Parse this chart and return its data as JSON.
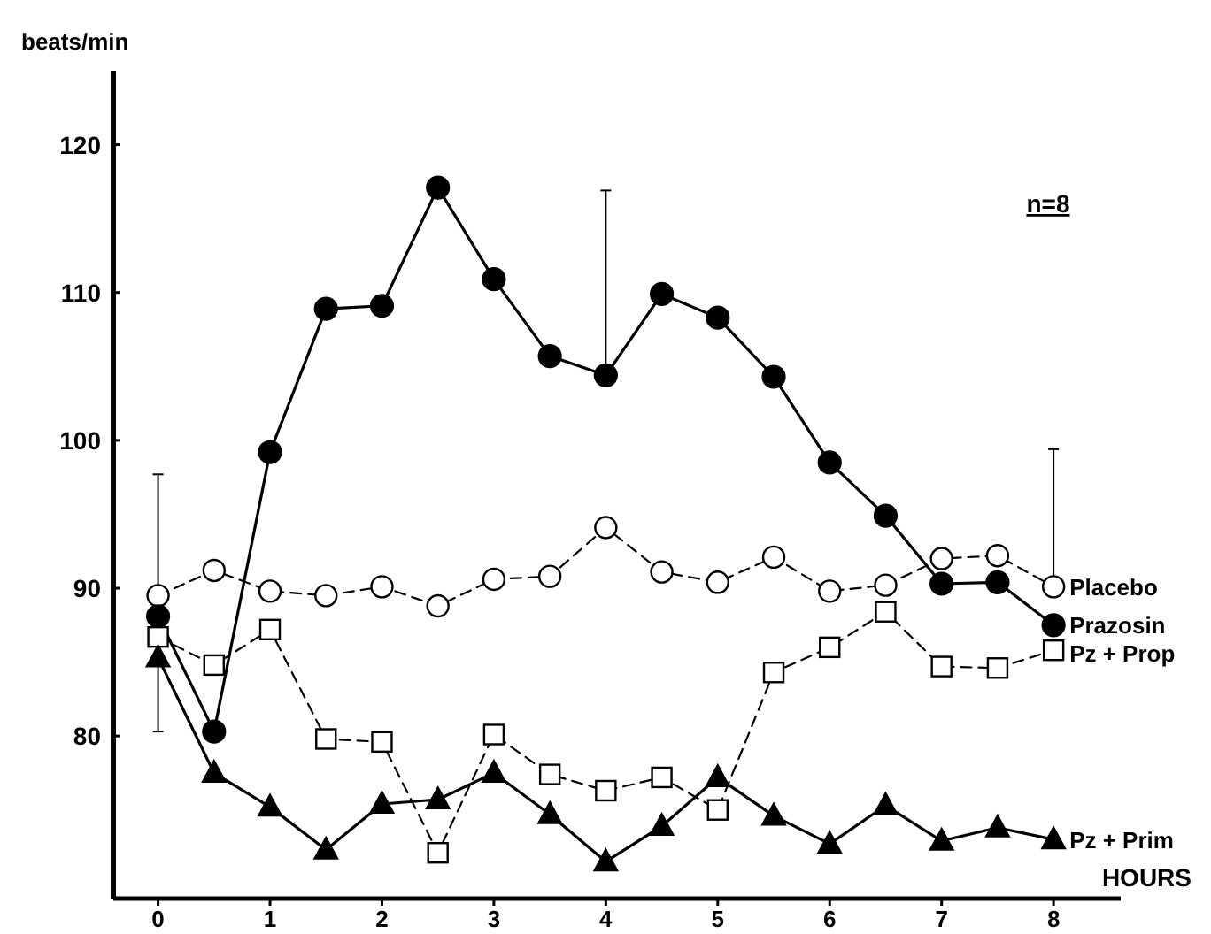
{
  "chart_data": {
    "type": "line",
    "xlabel": "HOURS",
    "ylabel": "beats/min",
    "annotations": [
      "n=8"
    ],
    "x": [
      0,
      0.5,
      1,
      1.5,
      2,
      2.5,
      3,
      3.5,
      4,
      4.5,
      5,
      5.5,
      6,
      6.5,
      7,
      7.5,
      8
    ],
    "xlim": [
      -0.4,
      8.6
    ],
    "xticks": [
      0,
      1,
      2,
      3,
      4,
      5,
      6,
      7,
      8
    ],
    "ylim": [
      69,
      125
    ],
    "yticks": [
      80,
      90,
      100,
      110,
      120
    ],
    "series": [
      {
        "name": "Placebo",
        "color": "#000000",
        "marker": "circle",
        "line_style": "dashed",
        "values": [
          89.5,
          91.2,
          89.8,
          89.5,
          90.1,
          88.8,
          90.6,
          90.8,
          94.1,
          91.1,
          90.4,
          92.1,
          89.8,
          90.2,
          92.0,
          92.2,
          90.1
        ],
        "errors": [
          [
            80.3,
            97.7
          ],
          null,
          null,
          null,
          null,
          null,
          null,
          null,
          null,
          null,
          null,
          null,
          null,
          null,
          null,
          null,
          [
            90.1,
            99.4
          ]
        ]
      },
      {
        "name": "Prazosin",
        "color": "#000000",
        "marker": "circle",
        "line_style": "solid",
        "values": [
          88.1,
          80.3,
          99.2,
          108.9,
          109.1,
          117.1,
          110.9,
          105.7,
          104.4,
          109.9,
          108.3,
          104.3,
          98.5,
          94.9,
          90.3,
          90.4,
          87.5
        ],
        "errors": [
          null,
          null,
          null,
          null,
          null,
          null,
          null,
          null,
          [
            104.4,
            116.9
          ],
          null,
          null,
          null,
          null,
          null,
          null,
          null,
          null
        ]
      },
      {
        "name": "Pz + Prop",
        "color": "#000000",
        "marker": "square",
        "line_style": "dashed",
        "values": [
          86.7,
          84.8,
          87.2,
          79.8,
          79.6,
          72.1,
          80.1,
          77.4,
          76.3,
          77.2,
          75.0,
          84.3,
          86.0,
          88.4,
          84.7,
          84.6,
          85.8
        ]
      },
      {
        "name": "Pz + Prim",
        "color": "#000000",
        "marker": "triangle",
        "line_style": "solid",
        "values": [
          85.3,
          77.5,
          75.2,
          72.3,
          75.4,
          75.7,
          77.5,
          74.7,
          71.5,
          73.9,
          77.2,
          74.6,
          72.7,
          75.3,
          72.9,
          73.8,
          73.0
        ]
      }
    ]
  }
}
